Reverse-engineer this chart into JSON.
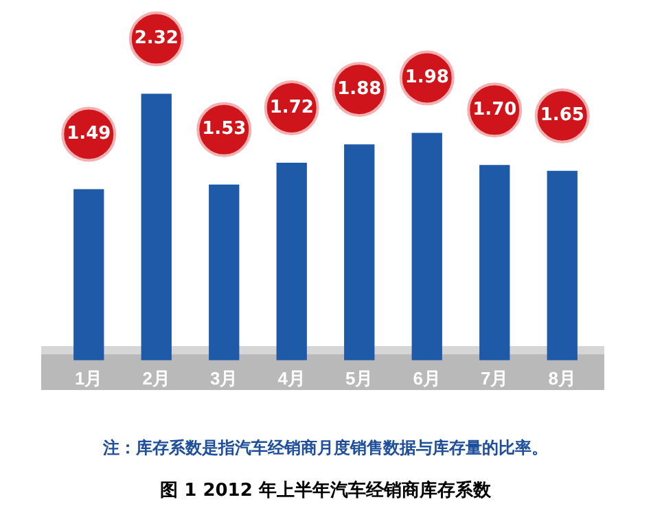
{
  "chart_data": {
    "type": "bar",
    "title": "图 1 2012 年上半年汽车经销商库存系数",
    "categories": [
      "1月",
      "2月",
      "3月",
      "4月",
      "5月",
      "6月",
      "7月",
      "8月"
    ],
    "values": [
      1.49,
      2.32,
      1.53,
      1.72,
      1.88,
      1.98,
      1.7,
      1.65
    ],
    "value_labels": [
      "1.49",
      "2.32",
      "1.53",
      "1.72",
      "1.88",
      "1.98",
      "1.70",
      "1.65"
    ],
    "color": "#1f5aa8",
    "grid": false,
    "legend": false,
    "annotations": [
      "注：库存系数是指汽车经销商月度销售数据与库存量的比率。"
    ]
  }
}
